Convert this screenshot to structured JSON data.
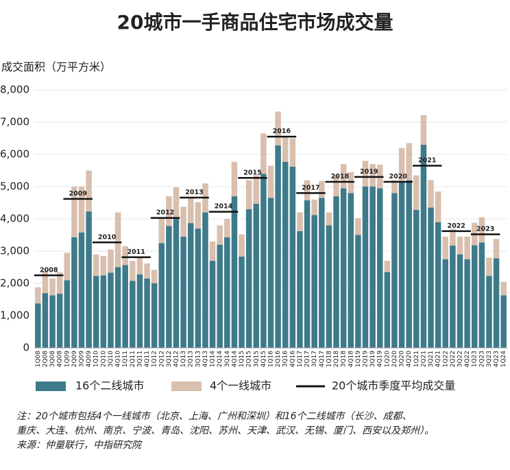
{
  "chart_data": {
    "type": "bar",
    "stacked": true,
    "title": "20城市一手商品住宅市场成交量",
    "y_label": "成交面积（万平方米）",
    "categories": [
      "1Q08",
      "2Q08",
      "3Q08",
      "4Q08",
      "1Q09",
      "2Q09",
      "3Q09",
      "4Q09",
      "1Q10",
      "2Q10",
      "3Q10",
      "4Q10",
      "1Q11",
      "2Q11",
      "3Q11",
      "4Q11",
      "1Q12",
      "2Q12",
      "3Q12",
      "4Q12",
      "1Q13",
      "2Q13",
      "3Q13",
      "4Q13",
      "1Q14",
      "2Q14",
      "3Q14",
      "4Q14",
      "1Q15",
      "2Q15",
      "3Q15",
      "4Q15",
      "1Q16",
      "2Q16",
      "3Q16",
      "4Q16",
      "1Q17",
      "2Q17",
      "3Q17",
      "4Q17",
      "1Q18",
      "2Q18",
      "3Q18",
      "4Q18",
      "1Q19",
      "2Q19",
      "3Q19",
      "4Q19",
      "1Q20",
      "2Q20",
      "3Q20",
      "4Q20",
      "1Q21",
      "2Q21",
      "3Q21",
      "4Q21",
      "1Q22",
      "2Q22",
      "3Q22",
      "4Q22",
      "1Q23",
      "2Q23",
      "3Q23",
      "4Q23",
      "1Q24"
    ],
    "series": [
      {
        "name": "16个二线城市",
        "color": "#3d7a8a",
        "values": [
          1380,
          1700,
          1630,
          1680,
          2100,
          3430,
          3580,
          4230,
          2230,
          2250,
          2330,
          2500,
          2570,
          2080,
          2280,
          2150,
          2000,
          3250,
          3780,
          4000,
          3450,
          3870,
          3700,
          4200,
          2700,
          3200,
          3430,
          4700,
          2830,
          4300,
          4470,
          5400,
          4650,
          6280,
          5770,
          5620,
          3620,
          4580,
          4120,
          4650,
          3800,
          4700,
          4950,
          4800,
          3500,
          5000,
          5000,
          4950,
          2350,
          4800,
          5150,
          5200,
          4280,
          6300,
          4350,
          3900,
          2750,
          3170,
          2900,
          2750,
          3180,
          3270,
          2230,
          2780,
          1630
        ]
      },
      {
        "name": "4个一线城市",
        "color": "#d9bfae",
        "values": [
          500,
          700,
          520,
          670,
          850,
          1570,
          1420,
          1270,
          670,
          600,
          720,
          1700,
          580,
          620,
          520,
          470,
          420,
          800,
          920,
          980,
          930,
          780,
          820,
          900,
          600,
          600,
          570,
          1070,
          690,
          900,
          880,
          1250,
          1000,
          1050,
          780,
          880,
          580,
          620,
          480,
          530,
          400,
          650,
          750,
          650,
          520,
          800,
          700,
          730,
          350,
          400,
          1050,
          1150,
          1070,
          920,
          850,
          950,
          700,
          510,
          550,
          700,
          700,
          780,
          570,
          600,
          420
        ]
      }
    ],
    "annual_average": {
      "name": "20个城市季度平均成交量",
      "color": "#111111",
      "years": [
        "2008",
        "2009",
        "2010",
        "2011",
        "2012",
        "2013",
        "2014",
        "2015",
        "2016",
        "2017",
        "2018",
        "2019",
        "2020",
        "2021",
        "2022",
        "2023"
      ],
      "values": [
        2250,
        4620,
        3270,
        2810,
        4030,
        4660,
        4220,
        5270,
        6550,
        4800,
        5150,
        5300,
        5150,
        5650,
        3620,
        3520
      ]
    },
    "ylim": [
      0,
      8000
    ],
    "yticks": [
      0,
      {
        "value": 1000,
        "label": "1,000"
      },
      {
        "value": 2000,
        "label": "2,000"
      },
      {
        "value": 3000,
        "label": "3,000"
      },
      {
        "value": 4000,
        "label": "4,000"
      },
      {
        "value": 5000,
        "label": "5,000"
      },
      {
        "value": 6000,
        "label": "6,000"
      },
      {
        "value": 7000,
        "label": "7,000"
      },
      {
        "value": 8000,
        "label": "8,000"
      }
    ],
    "grid": true,
    "notes": [
      "注：20个城市包括4个一线城市（北京、上海、广州和深圳）和16个二线城市（长沙、成都、",
      "重庆、大连、杭州、南京、宁波、青岛、沈阳、苏州、天津、武汉、无锡、厦门、西安以及郑州）。",
      "来源：仲量联行，中指研究院"
    ]
  }
}
